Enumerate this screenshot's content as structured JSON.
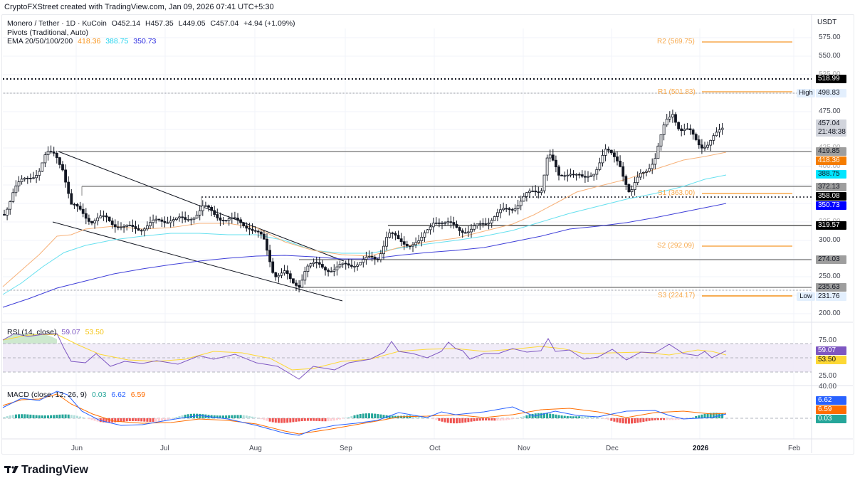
{
  "header": {
    "attribution": "CryptoFXStreet created with TradingView.com, Jan 09, 2026 07:41 UTC+5:30"
  },
  "legend": {
    "symbol": "Monero / Tether · 1D · KuCoin",
    "open": "O452.14",
    "high": "H457.35",
    "low": "L449.05",
    "close": "C457.04",
    "change": "+4.94 (+1.09%)",
    "pivots": "Pivots (Traditional, Auto)",
    "ema_label": "EMA 20/50/100/200",
    "ema_values": [
      "418.36",
      "388.75",
      "350.73"
    ]
  },
  "price_axis": {
    "currency": "USDT",
    "ticks": [
      "575.00",
      "550.00",
      "525.00",
      "475.00",
      "425.00",
      "400.00",
      "325.00",
      "300.00",
      "250.00",
      "200.00"
    ]
  },
  "price_tags": {
    "level_518": "518.99",
    "high_label": "High",
    "high": "498.83",
    "last_price": "457.04",
    "countdown": "21:48:38",
    "level_419": "419.85",
    "ema20": "418.36",
    "ema50": "388.75",
    "level_372": "372.13",
    "level_358": "358.08",
    "ema100": "350.73",
    "level_319": "319.57",
    "level_274": "274.03",
    "level_235": "235.63",
    "low_label": "Low",
    "low": "231.76"
  },
  "pivots": {
    "r2": "R2 (569.75)",
    "r1": "R1 (501.83)",
    "s1": "S1 (363.00)",
    "s2": "S2 (292.09)",
    "s3": "S3 (224.17)"
  },
  "rsi": {
    "label": "RSI (14, close)",
    "value": "59.07",
    "ma": "53.50",
    "ticks": [
      "75.00",
      "25.00"
    ]
  },
  "macd": {
    "label": "MACD (close, 12, 26, 9)",
    "histogram": "0.03",
    "macd": "6.62",
    "signal": "6.59",
    "tick": "40.00"
  },
  "time_axis": [
    "Jun",
    "Jul",
    "Aug",
    "Sep",
    "Oct",
    "Nov",
    "Dec",
    "2026",
    "Feb"
  ],
  "footer": {
    "brand": "TradingView"
  },
  "colors": {
    "ema20": "#f7931a",
    "ema50": "#00e5ff",
    "ema100": "#2962ff",
    "pivot": "#f7a94d",
    "rsi": "#7e57c2",
    "rsi_ma": "#fdd835",
    "macd": "#2962ff",
    "signal": "#ff6d00",
    "hist_pos": "#26a69a",
    "hist_neg": "#ef5350"
  },
  "chart_data": [
    {
      "type": "candlestick",
      "title": "Monero / Tether · 1D · KuCoin",
      "xlabel": "",
      "ylabel": "USDT",
      "ylim": [
        190,
        590
      ],
      "x_ticks": [
        "Jun",
        "Jul",
        "Aug",
        "Sep",
        "Oct",
        "Nov",
        "Dec",
        "2026",
        "Feb"
      ],
      "last": {
        "open": 452.14,
        "high": 457.35,
        "low": 449.05,
        "close": 457.04,
        "change": 4.94,
        "change_pct": 1.09
      },
      "horizontal_levels": [
        518.99,
        419.85,
        372.13,
        358.08,
        319.57,
        274.03,
        235.63
      ],
      "pivot_levels": {
        "R2": 569.75,
        "R1": 501.83,
        "S1": 363.0,
        "S2": 292.09,
        "S3": 224.17
      },
      "high": 498.83,
      "low": 231.76,
      "ema": {
        "EMA20": 418.36,
        "EMA50": 388.75,
        "EMA100": 350.73
      },
      "approx_close_by_month": {
        "late May": 405,
        "Jun": 330,
        "Jul": 335,
        "Aug": 240,
        "Sep": 330,
        "Oct": 350,
        "Nov": 400,
        "Dec": 440,
        "Jan 2026": 457
      }
    },
    {
      "type": "line",
      "title": "RSI (14, close)",
      "series": [
        {
          "name": "RSI",
          "last": 59.07
        },
        {
          "name": "RSI MA",
          "last": 53.5
        }
      ],
      "bands": [
        70,
        50,
        30
      ],
      "ylim": [
        20,
        80
      ]
    },
    {
      "type": "line",
      "title": "MACD (close, 12, 26, 9)",
      "series": [
        {
          "name": "Histogram",
          "last": 0.03
        },
        {
          "name": "MACD",
          "last": 6.62
        },
        {
          "name": "Signal",
          "last": 6.59
        }
      ]
    }
  ]
}
